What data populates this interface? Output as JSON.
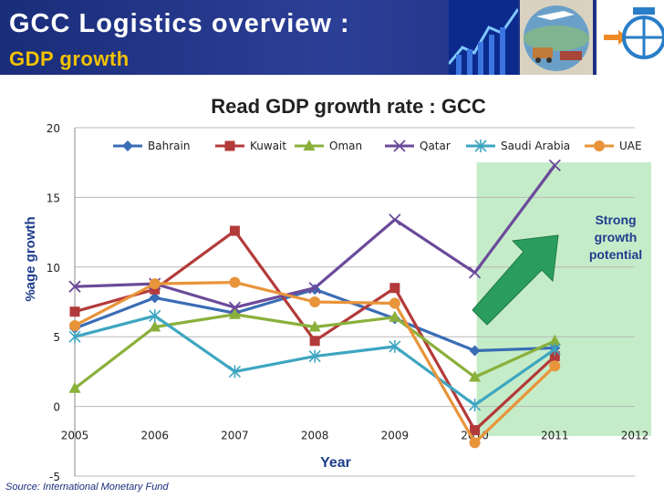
{
  "header": {
    "title_line1": "GCC Logistics overview :",
    "title_line2": "GDP growth"
  },
  "annotation": {
    "line1": "Strong",
    "line2": "growth",
    "line3": "potential"
  },
  "source_note": "Source:  International Monetary Fund",
  "colors": {
    "banner": "#1a2d7a",
    "highlight": "#c5ecc9",
    "arrow": "#2a9d5c"
  },
  "chart_data": {
    "type": "line",
    "title": "Read GDP growth rate : GCC",
    "xlabel": "Year",
    "ylabel": "%age growth",
    "x": [
      2005,
      2006,
      2007,
      2008,
      2009,
      2010,
      2011
    ],
    "x_ticks": [
      "2005",
      "2006",
      "2007",
      "2008",
      "2009",
      "2010",
      "2011",
      "2012"
    ],
    "y_ticks": [
      "-5",
      "0",
      "5",
      "10",
      "15",
      "20"
    ],
    "xlim": [
      2005,
      2012
    ],
    "ylim": [
      -5,
      20
    ],
    "legend_position": "top",
    "highlight_range": [
      2010,
      2012
    ],
    "series": [
      {
        "name": "Bahrain",
        "color": "#3a6db5",
        "marker": "diamond",
        "values": [
          5.6,
          7.8,
          6.7,
          8.4,
          6.3,
          4.0,
          4.2
        ]
      },
      {
        "name": "Kuwait",
        "color": "#b33a3a",
        "marker": "square",
        "values": [
          6.8,
          8.4,
          12.6,
          4.7,
          8.5,
          -1.7,
          3.6
        ]
      },
      {
        "name": "Oman",
        "color": "#8ab03b",
        "marker": "triangle",
        "values": [
          1.3,
          5.7,
          6.6,
          5.7,
          6.4,
          2.1,
          4.7
        ]
      },
      {
        "name": "Qatar",
        "color": "#6b4a9a",
        "marker": "x",
        "values": [
          8.6,
          8.8,
          7.1,
          8.5,
          13.4,
          9.6,
          17.3
        ]
      },
      {
        "name": "Saudi Arabia",
        "color": "#3ea6c0",
        "marker": "star",
        "values": [
          5.0,
          6.5,
          2.5,
          3.6,
          4.3,
          0.1,
          4.1
        ]
      },
      {
        "name": "UAE",
        "color": "#e8943a",
        "marker": "circle",
        "values": [
          5.8,
          8.8,
          8.9,
          7.5,
          7.4,
          -2.6,
          2.9
        ]
      }
    ]
  }
}
